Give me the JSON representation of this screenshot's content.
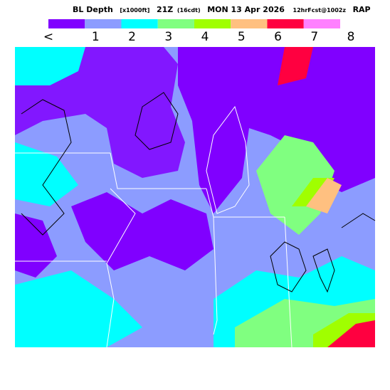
{
  "header": {
    "title": "BL Depth",
    "units": "[x1000ft]",
    "time": "21Z",
    "local": "(16cdt)",
    "date": "MON 13 Apr 2026",
    "forecast": "12hrFcst@1002z",
    "model": "RAP"
  },
  "legend": {
    "items": [
      {
        "label": "<",
        "color": "#8000ff"
      },
      {
        "label": "1",
        "color": "#8c9cff"
      },
      {
        "label": "2",
        "color": "#00ffff"
      },
      {
        "label": "3",
        "color": "#80ff80"
      },
      {
        "label": "4",
        "color": "#a0ff00"
      },
      {
        "label": "5",
        "color": "#ffc080"
      },
      {
        "label": "6",
        "color": "#ff0040"
      },
      {
        "label": "7",
        "color": "#ff80ff"
      },
      {
        "label": "8",
        "color": null
      }
    ]
  }
}
